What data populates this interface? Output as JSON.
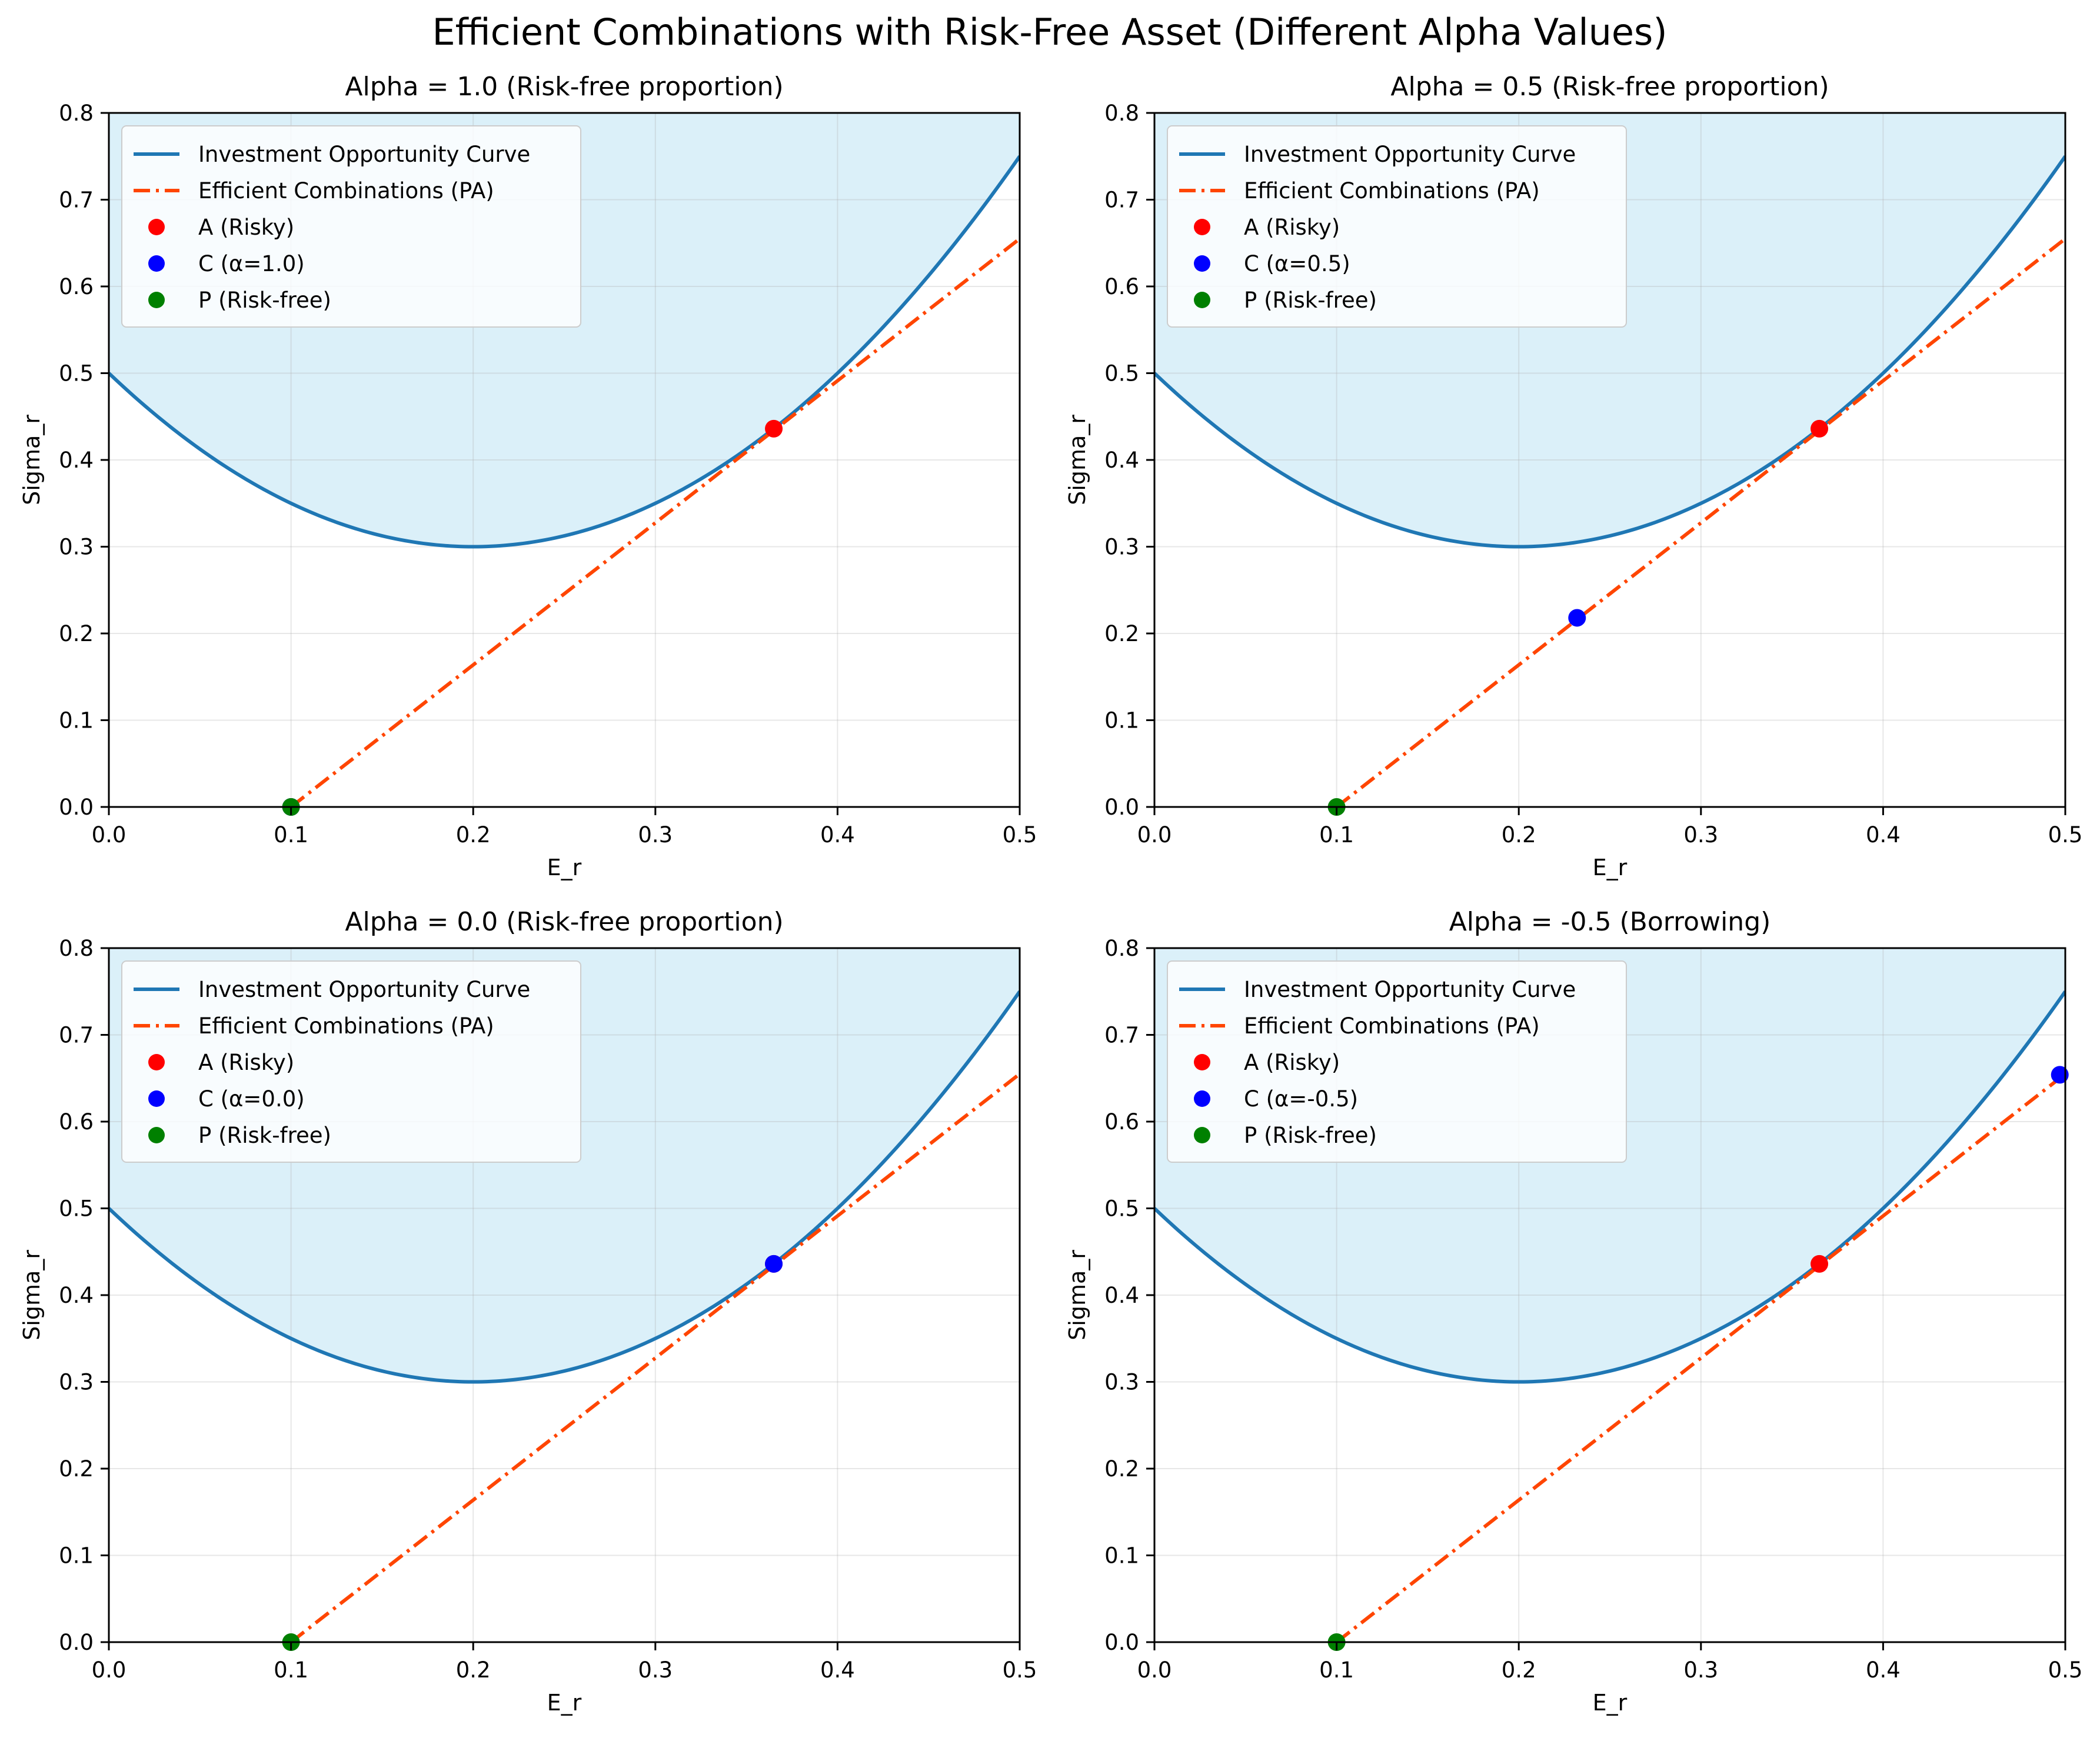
{
  "figure": {
    "title": "Efficient Combinations with Risk-Free Asset (Different Alpha Values)"
  },
  "colors": {
    "curve": "#1f77b4",
    "fill": "#87ceeb",
    "line": "#ff4500",
    "point_A": "#ff0000",
    "point_C": "#0000ff",
    "point_P": "#008000",
    "grid": "#b0b0b0"
  },
  "chart_data": [
    {
      "type": "line",
      "title": "Alpha = 1.0 (Risk-free proportion)",
      "xlabel": "E_r",
      "ylabel": "Sigma_r",
      "xlim": [
        0,
        0.5
      ],
      "ylim": [
        0,
        0.8
      ],
      "x_ticks": [
        "0.0",
        "0.1",
        "0.2",
        "0.3",
        "0.4",
        "0.5"
      ],
      "y_ticks": [
        "0.0",
        "0.1",
        "0.2",
        "0.3",
        "0.4",
        "0.5",
        "0.6",
        "0.7",
        "0.8"
      ],
      "grid": true,
      "legend_position": "upper-left",
      "legend": [
        "Investment Opportunity Curve",
        "Efficient Combinations (PA)",
        "A (Risky)",
        "C (α=1.0)",
        "P (Risk-free)"
      ],
      "curve": {
        "name": "Investment Opportunity Curve",
        "formula": "sigma = 0.3 + 5 * (E_r - 0.2)^2",
        "x_range": [
          0,
          0.5
        ],
        "shaded_above": true
      },
      "line": {
        "name": "Efficient Combinations (PA)",
        "from": [
          0.1,
          0.0
        ],
        "to": [
          0.5,
          0.655
        ],
        "style": "dash-dot"
      },
      "points": [
        {
          "name": "A (Risky)",
          "x": 0.365,
          "y": 0.436,
          "color": "#ff0000"
        },
        {
          "name": "C (α=1.0)",
          "x": 0.1,
          "y": 0.0,
          "color": "#0000ff"
        },
        {
          "name": "P (Risk-free)",
          "x": 0.1,
          "y": 0.0,
          "color": "#008000"
        }
      ]
    },
    {
      "type": "line",
      "title": "Alpha = 0.5 (Risk-free proportion)",
      "xlabel": "E_r",
      "ylabel": "Sigma_r",
      "xlim": [
        0,
        0.5
      ],
      "ylim": [
        0,
        0.8
      ],
      "x_ticks": [
        "0.0",
        "0.1",
        "0.2",
        "0.3",
        "0.4",
        "0.5"
      ],
      "y_ticks": [
        "0.0",
        "0.1",
        "0.2",
        "0.3",
        "0.4",
        "0.5",
        "0.6",
        "0.7",
        "0.8"
      ],
      "grid": true,
      "legend_position": "upper-left",
      "legend": [
        "Investment Opportunity Curve",
        "Efficient Combinations (PA)",
        "A (Risky)",
        "C (α=0.5)",
        "P (Risk-free)"
      ],
      "curve": {
        "name": "Investment Opportunity Curve",
        "formula": "sigma = 0.3 + 5 * (E_r - 0.2)^2",
        "x_range": [
          0,
          0.5
        ],
        "shaded_above": true
      },
      "line": {
        "name": "Efficient Combinations (PA)",
        "from": [
          0.1,
          0.0
        ],
        "to": [
          0.5,
          0.655
        ],
        "style": "dash-dot"
      },
      "points": [
        {
          "name": "A (Risky)",
          "x": 0.365,
          "y": 0.436,
          "color": "#ff0000"
        },
        {
          "name": "C (α=0.5)",
          "x": 0.232,
          "y": 0.218,
          "color": "#0000ff"
        },
        {
          "name": "P (Risk-free)",
          "x": 0.1,
          "y": 0.0,
          "color": "#008000"
        }
      ]
    },
    {
      "type": "line",
      "title": "Alpha = 0.0 (Risk-free proportion)",
      "xlabel": "E_r",
      "ylabel": "Sigma_r",
      "xlim": [
        0,
        0.5
      ],
      "ylim": [
        0,
        0.8
      ],
      "x_ticks": [
        "0.0",
        "0.1",
        "0.2",
        "0.3",
        "0.4",
        "0.5"
      ],
      "y_ticks": [
        "0.0",
        "0.1",
        "0.2",
        "0.3",
        "0.4",
        "0.5",
        "0.6",
        "0.7",
        "0.8"
      ],
      "grid": true,
      "legend_position": "upper-left",
      "legend": [
        "Investment Opportunity Curve",
        "Efficient Combinations (PA)",
        "A (Risky)",
        "C (α=0.0)",
        "P (Risk-free)"
      ],
      "curve": {
        "name": "Investment Opportunity Curve",
        "formula": "sigma = 0.3 + 5 * (E_r - 0.2)^2",
        "x_range": [
          0,
          0.5
        ],
        "shaded_above": true
      },
      "line": {
        "name": "Efficient Combinations (PA)",
        "from": [
          0.1,
          0.0
        ],
        "to": [
          0.5,
          0.655
        ],
        "style": "dash-dot"
      },
      "points": [
        {
          "name": "A (Risky)",
          "x": 0.365,
          "y": 0.436,
          "color": "#ff0000"
        },
        {
          "name": "C (α=0.0)",
          "x": 0.365,
          "y": 0.436,
          "color": "#0000ff"
        },
        {
          "name": "P (Risk-free)",
          "x": 0.1,
          "y": 0.0,
          "color": "#008000"
        }
      ]
    },
    {
      "type": "line",
      "title": "Alpha = -0.5 (Borrowing)",
      "xlabel": "E_r",
      "ylabel": "Sigma_r",
      "xlim": [
        0,
        0.5
      ],
      "ylim": [
        0,
        0.8
      ],
      "x_ticks": [
        "0.0",
        "0.1",
        "0.2",
        "0.3",
        "0.4",
        "0.5"
      ],
      "y_ticks": [
        "0.0",
        "0.1",
        "0.2",
        "0.3",
        "0.4",
        "0.5",
        "0.6",
        "0.7",
        "0.8"
      ],
      "grid": true,
      "legend_position": "upper-left",
      "legend": [
        "Investment Opportunity Curve",
        "Efficient Combinations (PA)",
        "A (Risky)",
        "C (α=-0.5)",
        "P (Risk-free)"
      ],
      "curve": {
        "name": "Investment Opportunity Curve",
        "formula": "sigma = 0.3 + 5 * (E_r - 0.2)^2",
        "x_range": [
          0,
          0.5
        ],
        "shaded_above": true
      },
      "line": {
        "name": "Efficient Combinations (PA)",
        "from": [
          0.1,
          0.0
        ],
        "to": [
          0.5,
          0.655
        ],
        "style": "dash-dot"
      },
      "points": [
        {
          "name": "A (Risky)",
          "x": 0.365,
          "y": 0.436,
          "color": "#ff0000"
        },
        {
          "name": "C (α=-0.5)",
          "x": 0.497,
          "y": 0.654,
          "color": "#0000ff"
        },
        {
          "name": "P (Risk-free)",
          "x": 0.1,
          "y": 0.0,
          "color": "#008000"
        }
      ]
    }
  ]
}
